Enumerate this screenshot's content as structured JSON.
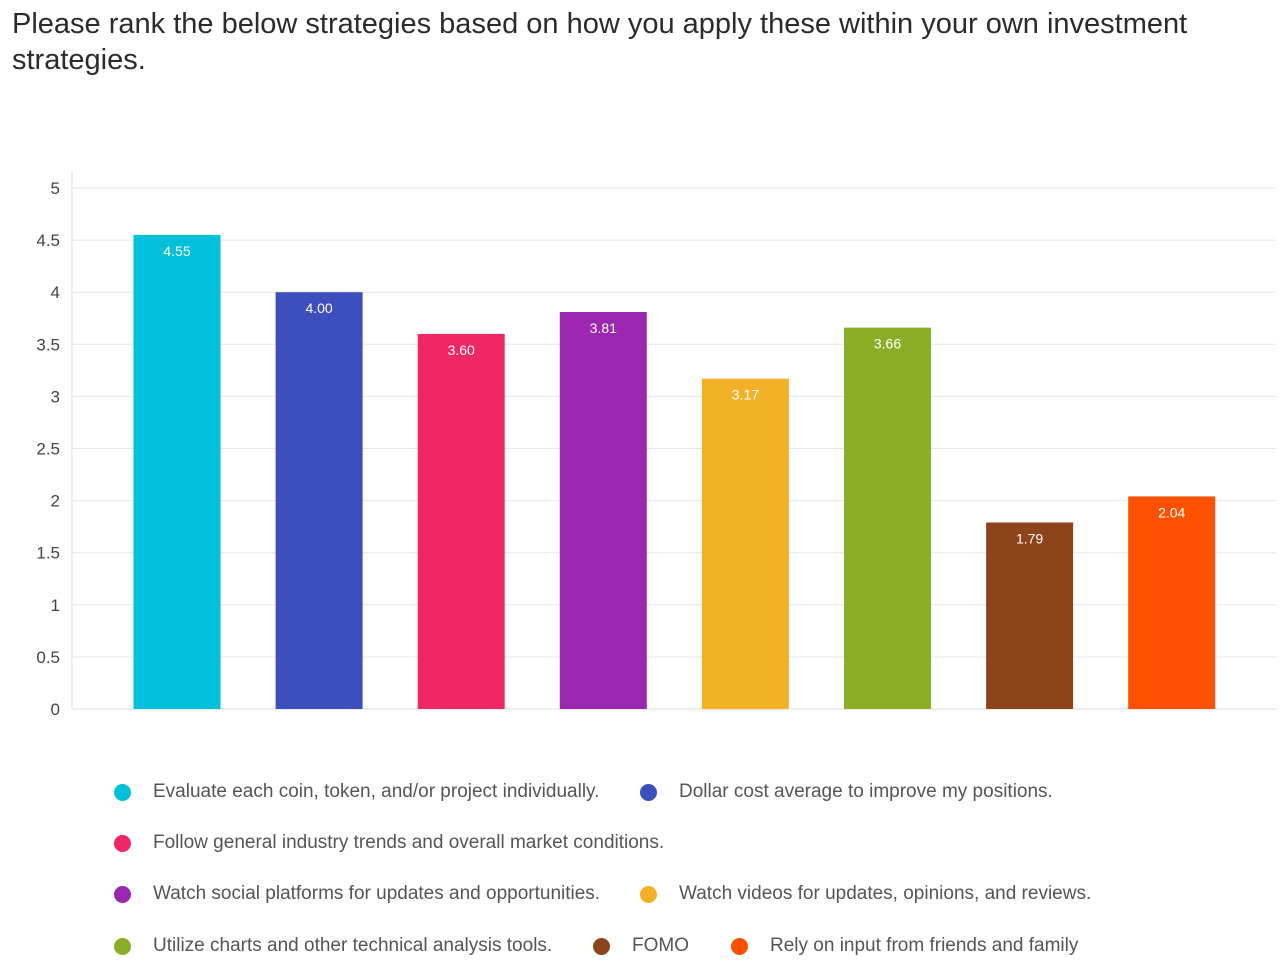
{
  "question": {
    "title": "Please rank the below strategies based on how you apply these within your own investment strategies."
  },
  "chart_data": {
    "type": "bar",
    "title": "Please rank the below strategies based on how you apply these within your own investment strategies.",
    "xlabel": "",
    "ylabel": "",
    "ylim": [
      0,
      5
    ],
    "yticks": [
      0,
      0.5,
      1,
      1.5,
      2,
      2.5,
      3,
      3.5,
      4,
      4.5,
      5
    ],
    "grid": true,
    "legend_position": "bottom",
    "categories": [
      "Evaluate each coin, token, and/or project individually.",
      "Dollar cost average to improve my positions.",
      "Follow general industry trends and overall market conditions.",
      "Watch social platforms for updates and opportunities.",
      "Watch videos for updates, opinions, and reviews.",
      "Utilize charts and other technical analysis tools.",
      "FOMO",
      "Rely on input from friends and family"
    ],
    "values": [
      4.55,
      4.0,
      3.6,
      3.81,
      3.17,
      3.66,
      1.79,
      2.04
    ],
    "value_labels": [
      "4.55",
      "4.00",
      "3.60",
      "3.81",
      "3.17",
      "3.66",
      "1.79",
      "2.04"
    ],
    "colors": [
      "#00c0da",
      "#3c4fbd",
      "#ef2765",
      "#9c27b0",
      "#f2b127",
      "#8aae27",
      "#8d441a",
      "#fe5100"
    ]
  }
}
